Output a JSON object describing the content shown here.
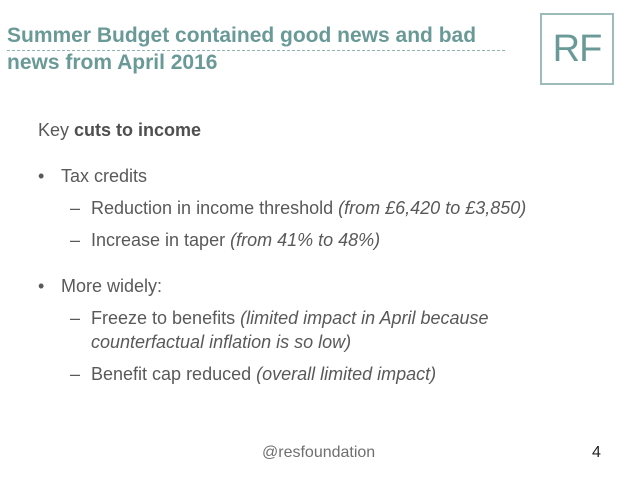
{
  "slide": {
    "title": "Summer Budget contained good news and bad news from April 2016",
    "logo_text": "RF",
    "heading_prefix": "Key ",
    "heading_bold": "cuts to income",
    "bullets": [
      {
        "label": "Tax credits",
        "items": [
          {
            "text": "Reduction in income threshold ",
            "note": "(from £6,420 to £3,850)"
          },
          {
            "text": "Increase in taper ",
            "note": "(from 41% to 48%)"
          }
        ]
      },
      {
        "label": "More widely:",
        "items": [
          {
            "text": "Freeze to benefits ",
            "note": "(limited impact in April because counterfactual inflation is so low)"
          },
          {
            "text": "Benefit cap reduced ",
            "note": "(overall limited impact)"
          }
        ]
      }
    ],
    "bullet_glyph": "•",
    "dash_glyph": "–",
    "footer_handle": "@resfoundation",
    "page_number": "4"
  }
}
